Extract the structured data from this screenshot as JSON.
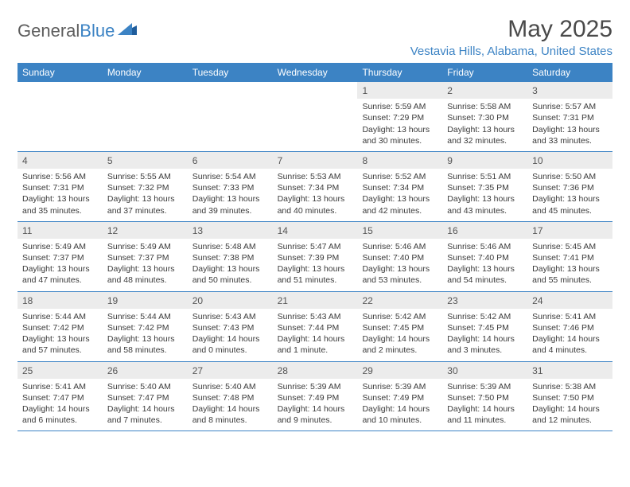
{
  "brand": {
    "text1": "General",
    "text2": "Blue"
  },
  "title": "May 2025",
  "location": "Vestavia Hills, Alabama, United States",
  "colors": {
    "header_bg": "#3c83c4",
    "header_text": "#ffffff",
    "daynum_bg": "#ececec",
    "border": "#3c83c4",
    "body_text": "#3a3a3a",
    "title_text": "#4a4a4a",
    "brand_accent": "#3c83c4"
  },
  "day_names": [
    "Sunday",
    "Monday",
    "Tuesday",
    "Wednesday",
    "Thursday",
    "Friday",
    "Saturday"
  ],
  "weeks": [
    [
      {
        "day": "",
        "sunrise": "",
        "sunset": "",
        "daylight": ""
      },
      {
        "day": "",
        "sunrise": "",
        "sunset": "",
        "daylight": ""
      },
      {
        "day": "",
        "sunrise": "",
        "sunset": "",
        "daylight": ""
      },
      {
        "day": "",
        "sunrise": "",
        "sunset": "",
        "daylight": ""
      },
      {
        "day": "1",
        "sunrise": "Sunrise: 5:59 AM",
        "sunset": "Sunset: 7:29 PM",
        "daylight": "Daylight: 13 hours and 30 minutes."
      },
      {
        "day": "2",
        "sunrise": "Sunrise: 5:58 AM",
        "sunset": "Sunset: 7:30 PM",
        "daylight": "Daylight: 13 hours and 32 minutes."
      },
      {
        "day": "3",
        "sunrise": "Sunrise: 5:57 AM",
        "sunset": "Sunset: 7:31 PM",
        "daylight": "Daylight: 13 hours and 33 minutes."
      }
    ],
    [
      {
        "day": "4",
        "sunrise": "Sunrise: 5:56 AM",
        "sunset": "Sunset: 7:31 PM",
        "daylight": "Daylight: 13 hours and 35 minutes."
      },
      {
        "day": "5",
        "sunrise": "Sunrise: 5:55 AM",
        "sunset": "Sunset: 7:32 PM",
        "daylight": "Daylight: 13 hours and 37 minutes."
      },
      {
        "day": "6",
        "sunrise": "Sunrise: 5:54 AM",
        "sunset": "Sunset: 7:33 PM",
        "daylight": "Daylight: 13 hours and 39 minutes."
      },
      {
        "day": "7",
        "sunrise": "Sunrise: 5:53 AM",
        "sunset": "Sunset: 7:34 PM",
        "daylight": "Daylight: 13 hours and 40 minutes."
      },
      {
        "day": "8",
        "sunrise": "Sunrise: 5:52 AM",
        "sunset": "Sunset: 7:34 PM",
        "daylight": "Daylight: 13 hours and 42 minutes."
      },
      {
        "day": "9",
        "sunrise": "Sunrise: 5:51 AM",
        "sunset": "Sunset: 7:35 PM",
        "daylight": "Daylight: 13 hours and 43 minutes."
      },
      {
        "day": "10",
        "sunrise": "Sunrise: 5:50 AM",
        "sunset": "Sunset: 7:36 PM",
        "daylight": "Daylight: 13 hours and 45 minutes."
      }
    ],
    [
      {
        "day": "11",
        "sunrise": "Sunrise: 5:49 AM",
        "sunset": "Sunset: 7:37 PM",
        "daylight": "Daylight: 13 hours and 47 minutes."
      },
      {
        "day": "12",
        "sunrise": "Sunrise: 5:49 AM",
        "sunset": "Sunset: 7:37 PM",
        "daylight": "Daylight: 13 hours and 48 minutes."
      },
      {
        "day": "13",
        "sunrise": "Sunrise: 5:48 AM",
        "sunset": "Sunset: 7:38 PM",
        "daylight": "Daylight: 13 hours and 50 minutes."
      },
      {
        "day": "14",
        "sunrise": "Sunrise: 5:47 AM",
        "sunset": "Sunset: 7:39 PM",
        "daylight": "Daylight: 13 hours and 51 minutes."
      },
      {
        "day": "15",
        "sunrise": "Sunrise: 5:46 AM",
        "sunset": "Sunset: 7:40 PM",
        "daylight": "Daylight: 13 hours and 53 minutes."
      },
      {
        "day": "16",
        "sunrise": "Sunrise: 5:46 AM",
        "sunset": "Sunset: 7:40 PM",
        "daylight": "Daylight: 13 hours and 54 minutes."
      },
      {
        "day": "17",
        "sunrise": "Sunrise: 5:45 AM",
        "sunset": "Sunset: 7:41 PM",
        "daylight": "Daylight: 13 hours and 55 minutes."
      }
    ],
    [
      {
        "day": "18",
        "sunrise": "Sunrise: 5:44 AM",
        "sunset": "Sunset: 7:42 PM",
        "daylight": "Daylight: 13 hours and 57 minutes."
      },
      {
        "day": "19",
        "sunrise": "Sunrise: 5:44 AM",
        "sunset": "Sunset: 7:42 PM",
        "daylight": "Daylight: 13 hours and 58 minutes."
      },
      {
        "day": "20",
        "sunrise": "Sunrise: 5:43 AM",
        "sunset": "Sunset: 7:43 PM",
        "daylight": "Daylight: 14 hours and 0 minutes."
      },
      {
        "day": "21",
        "sunrise": "Sunrise: 5:43 AM",
        "sunset": "Sunset: 7:44 PM",
        "daylight": "Daylight: 14 hours and 1 minute."
      },
      {
        "day": "22",
        "sunrise": "Sunrise: 5:42 AM",
        "sunset": "Sunset: 7:45 PM",
        "daylight": "Daylight: 14 hours and 2 minutes."
      },
      {
        "day": "23",
        "sunrise": "Sunrise: 5:42 AM",
        "sunset": "Sunset: 7:45 PM",
        "daylight": "Daylight: 14 hours and 3 minutes."
      },
      {
        "day": "24",
        "sunrise": "Sunrise: 5:41 AM",
        "sunset": "Sunset: 7:46 PM",
        "daylight": "Daylight: 14 hours and 4 minutes."
      }
    ],
    [
      {
        "day": "25",
        "sunrise": "Sunrise: 5:41 AM",
        "sunset": "Sunset: 7:47 PM",
        "daylight": "Daylight: 14 hours and 6 minutes."
      },
      {
        "day": "26",
        "sunrise": "Sunrise: 5:40 AM",
        "sunset": "Sunset: 7:47 PM",
        "daylight": "Daylight: 14 hours and 7 minutes."
      },
      {
        "day": "27",
        "sunrise": "Sunrise: 5:40 AM",
        "sunset": "Sunset: 7:48 PM",
        "daylight": "Daylight: 14 hours and 8 minutes."
      },
      {
        "day": "28",
        "sunrise": "Sunrise: 5:39 AM",
        "sunset": "Sunset: 7:49 PM",
        "daylight": "Daylight: 14 hours and 9 minutes."
      },
      {
        "day": "29",
        "sunrise": "Sunrise: 5:39 AM",
        "sunset": "Sunset: 7:49 PM",
        "daylight": "Daylight: 14 hours and 10 minutes."
      },
      {
        "day": "30",
        "sunrise": "Sunrise: 5:39 AM",
        "sunset": "Sunset: 7:50 PM",
        "daylight": "Daylight: 14 hours and 11 minutes."
      },
      {
        "day": "31",
        "sunrise": "Sunrise: 5:38 AM",
        "sunset": "Sunset: 7:50 PM",
        "daylight": "Daylight: 14 hours and 12 minutes."
      }
    ]
  ]
}
